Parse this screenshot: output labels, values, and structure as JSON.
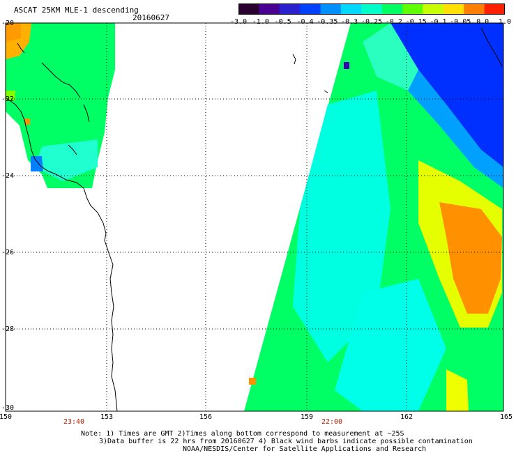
{
  "header": {
    "title": "ASCAT 25KM MLE-1 descending",
    "date": "20160627"
  },
  "colorbar": {
    "labels": [
      "-3.0",
      "-1.0",
      "-0.5",
      "-0.4",
      "-0.35",
      "-0.3",
      "-0.25",
      "-0.2",
      "-0.15",
      "-0.1",
      "-0.05",
      "0.0",
      "1.0"
    ],
    "colors": [
      "#2a0030",
      "#4a0090",
      "#2a20d0",
      "#0040ff",
      "#0090ff",
      "#00d8ff",
      "#00ffc8",
      "#00ff60",
      "#60ff00",
      "#c8ff00",
      "#ffe000",
      "#ff8000",
      "#ff2000"
    ]
  },
  "axes": {
    "lat_labels": [
      "-20",
      "-22",
      "-24",
      "-26",
      "-28",
      "-30"
    ],
    "lon_labels": [
      "150",
      "153",
      "156",
      "159",
      "162",
      "165"
    ],
    "time_labels": [
      {
        "text": "23:40",
        "lon": 153.0
      },
      {
        "text": "22:00",
        "lon": 159.7
      }
    ]
  },
  "notes": {
    "line1": "Note: 1) Times are GMT 2)Times along bottom correspond to measurement at ~25S",
    "line2": "3)Data buffer is 22 hrs from 20160627 4) Black wind barbs indicate possible contamination",
    "line3": "NOAA/NESDIS/Center for Satellite Applications and Research"
  },
  "colors": {
    "land": "#ffffff",
    "grid": "#000000",
    "accent_time": "#b02000"
  }
}
